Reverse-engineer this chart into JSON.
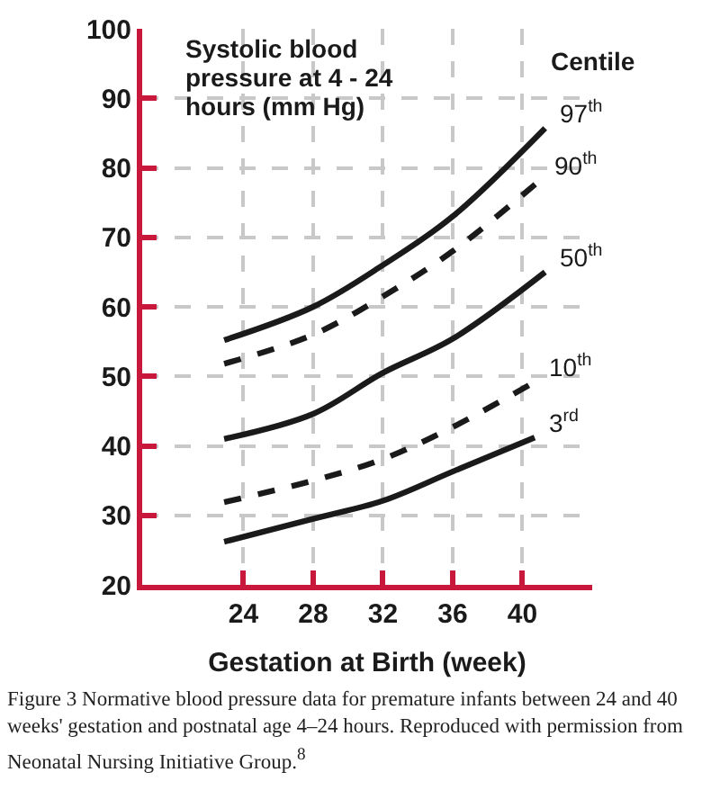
{
  "chart_data": {
    "type": "line",
    "ylabel": "Systolic blood pressure at 4 - 24 hours (mm Hg)",
    "xlabel": "Gestation at Birth (week)",
    "legend_title": "Centile",
    "xlim": [
      18.2,
      44
    ],
    "xticks": [
      24,
      28,
      32,
      36,
      40
    ],
    "ylim": [
      20,
      100
    ],
    "yticks": [
      20,
      30,
      40,
      50,
      60,
      70,
      80,
      90,
      100
    ],
    "grid": true,
    "legend": false,
    "marker": "none",
    "series": [
      {
        "name": "97$^{th}$",
        "color": "#1a1a1a",
        "line_style": "solid",
        "x": [
          22.9,
          28,
          32,
          36,
          41.3
        ],
        "values": [
          55.2,
          60,
          66,
          73,
          85.7
        ]
      },
      {
        "name": "90$^{th}$",
        "color": "#1a1a1a",
        "line_style": "dashed",
        "x": [
          22.9,
          28,
          32,
          36,
          41
        ],
        "values": [
          51.8,
          56,
          61.5,
          68,
          78.2
        ]
      },
      {
        "name": "50$^{th}$",
        "color": "#1a1a1a",
        "line_style": "solid",
        "x": [
          22.9,
          28,
          32,
          36,
          41.3
        ],
        "values": [
          41,
          44.6,
          50.5,
          55.4,
          65
        ]
      },
      {
        "name": "10$^{th}$",
        "color": "#1a1a1a",
        "line_style": "dashed",
        "x": [
          22.9,
          28,
          32,
          36,
          40.7
        ],
        "values": [
          31.9,
          35,
          38.1,
          42.7,
          49.2
        ]
      },
      {
        "name": "3$^{rd}$",
        "color": "#1a1a1a",
        "line_style": "solid",
        "x": [
          22.9,
          28,
          32,
          36,
          40.7
        ],
        "values": [
          26.2,
          29.5,
          32.1,
          36.3,
          41.2
        ]
      }
    ],
    "annotations": [
      "Figure 3 Normative blood pressure data for premature infants between 24 and 40 weeks' gestation and postnatal age 4–24 hours. Reproduced with permission from Neonatal Nursing Initiative Group.$^{8}$"
    ]
  }
}
